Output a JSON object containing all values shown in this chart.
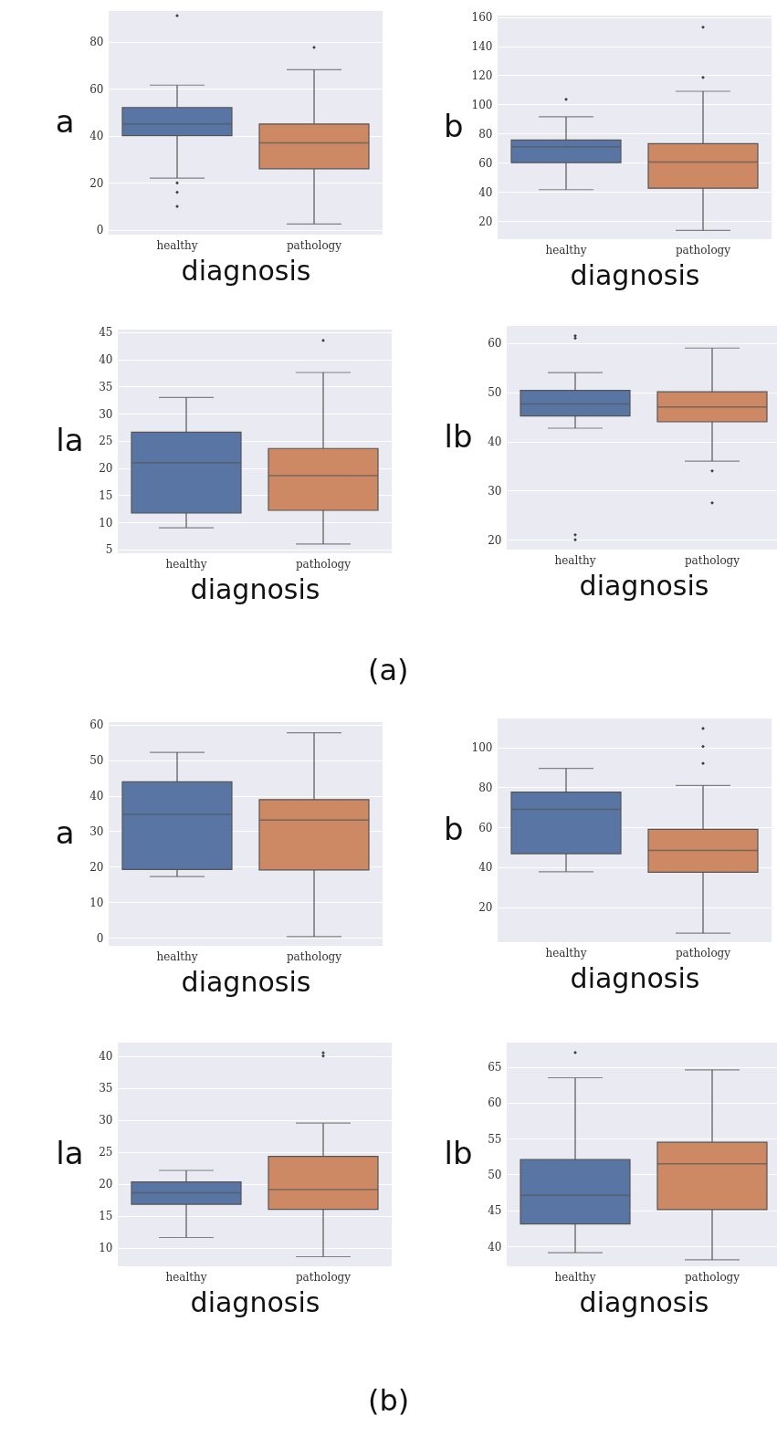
{
  "chart_data": [
    {
      "type": "box",
      "ylabel": "a",
      "xlabel": "diagnosis",
      "categories": [
        "healthy",
        "pathology"
      ],
      "colors": [
        "#5875a4",
        "#cc8963"
      ],
      "grid": "y",
      "ylim": [
        -2,
        93
      ],
      "yticks": [
        0,
        20,
        40,
        60,
        80
      ],
      "boxes": [
        {
          "low": 22,
          "q1": 40,
          "median": 45,
          "q3": 52,
          "high": 61.5,
          "outliers": [
            20,
            16,
            10,
            91
          ]
        },
        {
          "low": 2.5,
          "q1": 26,
          "median": 37,
          "q3": 45,
          "high": 68,
          "outliers": [
            77.5
          ]
        }
      ]
    },
    {
      "type": "box",
      "ylabel": "b",
      "xlabel": "diagnosis",
      "categories": [
        "healthy",
        "pathology"
      ],
      "colors": [
        "#5875a4",
        "#cc8963"
      ],
      "grid": "y",
      "ylim": [
        7.5,
        161
      ],
      "yticks": [
        20,
        40,
        60,
        80,
        100,
        120,
        140,
        160
      ],
      "boxes": [
        {
          "low": 41.5,
          "q1": 60,
          "median": 71,
          "q3": 75.5,
          "high": 91.5,
          "outliers": [
            103.5
          ]
        },
        {
          "low": 13.5,
          "q1": 42.5,
          "median": 60.5,
          "q3": 73,
          "high": 109,
          "outliers": [
            118.5,
            153
          ]
        }
      ]
    },
    {
      "type": "box",
      "ylabel": "la",
      "xlabel": "diagnosis",
      "categories": [
        "healthy",
        "pathology"
      ],
      "colors": [
        "#5875a4",
        "#cc8963"
      ],
      "grid": "y",
      "ylim": [
        4.3,
        45.5
      ],
      "yticks": [
        5,
        10,
        15,
        20,
        25,
        30,
        35,
        40,
        45
      ],
      "boxes": [
        {
          "low": 9,
          "q1": 11.7,
          "median": 21,
          "q3": 26.6,
          "high": 33
        },
        {
          "low": 6,
          "q1": 12.2,
          "median": 18.6,
          "q3": 23.6,
          "high": 37.6,
          "outliers": [
            43.5
          ]
        }
      ]
    },
    {
      "type": "box",
      "ylabel": "lb",
      "xlabel": "diagnosis",
      "categories": [
        "healthy",
        "pathology"
      ],
      "colors": [
        "#5875a4",
        "#cc8963"
      ],
      "grid": "y",
      "ylim": [
        18,
        63.5
      ],
      "yticks": [
        20,
        30,
        40,
        50,
        60
      ],
      "annotations": [
        "(a)"
      ],
      "boxes": [
        {
          "low": 42.7,
          "q1": 45.2,
          "median": 47.6,
          "q3": 50.4,
          "high": 54,
          "outliers": [
            61,
            61.5,
            21,
            20
          ]
        },
        {
          "low": 36,
          "q1": 44,
          "median": 47,
          "q3": 50.1,
          "high": 59,
          "outliers": [
            34,
            27.5
          ]
        }
      ]
    },
    {
      "type": "box",
      "ylabel": "a",
      "xlabel": "diagnosis",
      "categories": [
        "healthy",
        "pathology"
      ],
      "colors": [
        "#5875a4",
        "#cc8963"
      ],
      "grid": "y",
      "ylim": [
        -2.3,
        60.7
      ],
      "yticks": [
        0,
        10,
        20,
        30,
        40,
        50,
        60
      ],
      "boxes": [
        {
          "low": 17.2,
          "q1": 19.2,
          "median": 34.7,
          "q3": 43.9,
          "high": 52.2
        },
        {
          "low": 0.3,
          "q1": 19.1,
          "median": 33.1,
          "q3": 38.9,
          "high": 57.7
        }
      ]
    },
    {
      "type": "box",
      "ylabel": "b",
      "xlabel": "diagnosis",
      "categories": [
        "healthy",
        "pathology"
      ],
      "colors": [
        "#5875a4",
        "#cc8963"
      ],
      "grid": "y",
      "ylim": [
        2.5,
        114.5
      ],
      "yticks": [
        20,
        40,
        60,
        80,
        100
      ],
      "boxes": [
        {
          "low": 37.8,
          "q1": 46.8,
          "median": 69,
          "q3": 77.6,
          "high": 89.5
        },
        {
          "low": 7,
          "q1": 37.5,
          "median": 48.5,
          "q3": 59,
          "high": 81,
          "outliers": [
            92,
            100.5,
            109.5
          ]
        }
      ]
    },
    {
      "type": "box",
      "ylabel": "la",
      "xlabel": "diagnosis",
      "categories": [
        "healthy",
        "pathology"
      ],
      "colors": [
        "#5875a4",
        "#cc8963"
      ],
      "grid": "y",
      "ylim": [
        7.1,
        42.1
      ],
      "yticks": [
        10,
        15,
        20,
        25,
        30,
        35,
        40
      ],
      "boxes": [
        {
          "low": 11.6,
          "q1": 16.8,
          "median": 18.6,
          "q3": 20.3,
          "high": 22.1
        },
        {
          "low": 8.6,
          "q1": 16,
          "median": 19.1,
          "q3": 24.3,
          "high": 29.5,
          "outliers": [
            40,
            40.5
          ]
        }
      ]
    },
    {
      "type": "box",
      "ylabel": "lb",
      "xlabel": "diagnosis",
      "categories": [
        "healthy",
        "pathology"
      ],
      "colors": [
        "#5875a4",
        "#cc8963"
      ],
      "grid": "y",
      "ylim": [
        37.2,
        68.4
      ],
      "yticks": [
        40,
        45,
        50,
        55,
        60,
        65
      ],
      "annotations": [
        "(b)"
      ],
      "boxes": [
        {
          "low": 39.1,
          "q1": 43.1,
          "median": 47.1,
          "q3": 52.1,
          "high": 63.5,
          "outliers": [
            67
          ]
        },
        {
          "low": 38.1,
          "q1": 45.1,
          "median": 51.5,
          "q3": 54.5,
          "high": 64.6
        }
      ]
    }
  ]
}
